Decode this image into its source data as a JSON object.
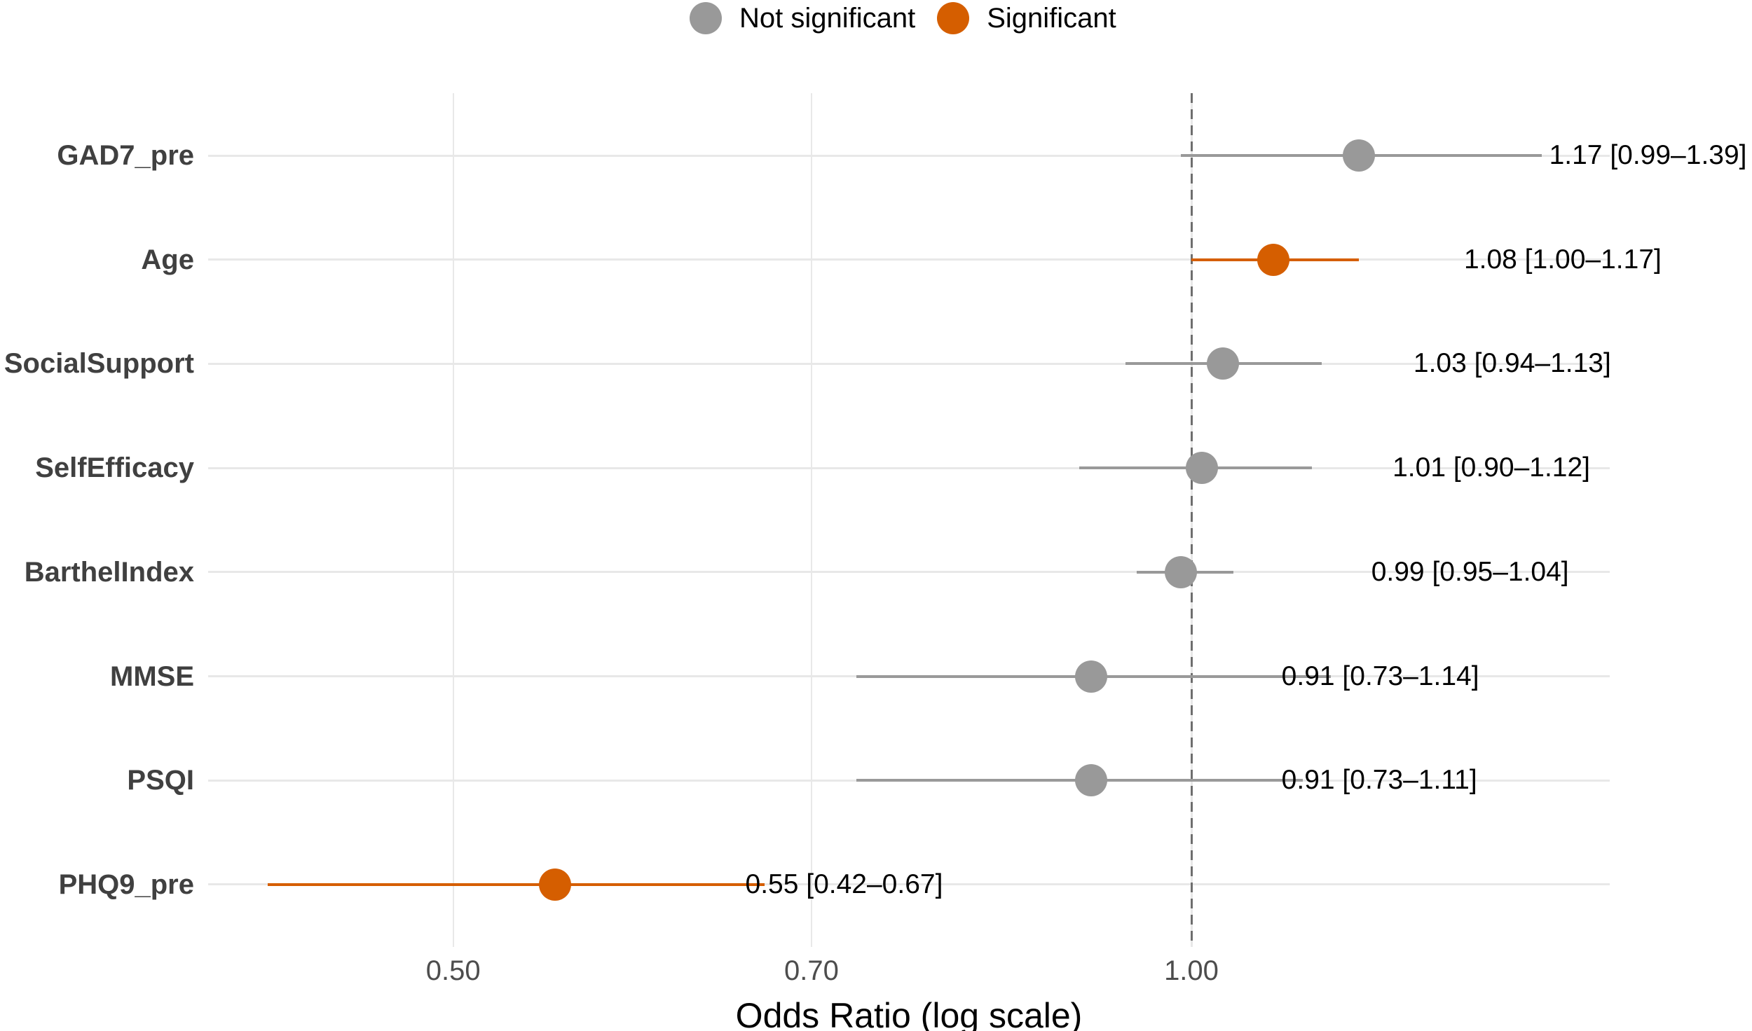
{
  "colors": {
    "not_significant": "#999999",
    "significant": "#D55E00",
    "grid": "#E8E8E8",
    "reference_line": "#6E6E6E",
    "y_axis_label": "#404040",
    "x_tick_label": "#4D4D4D",
    "data_label": "#000000",
    "background": "#FFFFFF"
  },
  "legend": {
    "items": [
      {
        "label": "Not significant",
        "color_key": "not_significant"
      },
      {
        "label": "Significant",
        "color_key": "significant"
      }
    ]
  },
  "chart_data": {
    "type": "scatter",
    "subtype": "forest-plot-odds-ratios",
    "title": "",
    "xlabel": "Odds Ratio (log scale)",
    "ylabel": "",
    "x_scale": "log",
    "xlim": [
      0.397,
      1.48
    ],
    "grid": true,
    "legend_position": "top",
    "x_ticks": [
      {
        "value": 0.5,
        "label": "0.50"
      },
      {
        "value": 0.7,
        "label": "0.70"
      },
      {
        "value": 1.0,
        "label": "1.00"
      }
    ],
    "reference_line_x": 1.0,
    "rows": [
      {
        "label": "GAD7_pre",
        "or": 1.17,
        "ci_low": 0.99,
        "ci_high": 1.39,
        "significant": false,
        "annotation": "1.17 [0.99–1.39]"
      },
      {
        "label": "Age",
        "or": 1.08,
        "ci_low": 1.0,
        "ci_high": 1.17,
        "significant": true,
        "annotation": "1.08 [1.00–1.17]"
      },
      {
        "label": "SocialSupport",
        "or": 1.03,
        "ci_low": 0.94,
        "ci_high": 1.13,
        "significant": false,
        "annotation": "1.03 [0.94–1.13]"
      },
      {
        "label": "SelfEfficacy",
        "or": 1.01,
        "ci_low": 0.9,
        "ci_high": 1.12,
        "significant": false,
        "annotation": "1.01 [0.90–1.12]"
      },
      {
        "label": "BarthelIndex",
        "or": 0.99,
        "ci_low": 0.95,
        "ci_high": 1.04,
        "significant": false,
        "annotation": "0.99 [0.95–1.04]"
      },
      {
        "label": "MMSE",
        "or": 0.91,
        "ci_low": 0.73,
        "ci_high": 1.14,
        "significant": false,
        "annotation": "0.91 [0.73–1.14]"
      },
      {
        "label": "PSQI",
        "or": 0.91,
        "ci_low": 0.73,
        "ci_high": 1.11,
        "significant": false,
        "annotation": "0.91 [0.73–1.11]"
      },
      {
        "label": "PHQ9_pre",
        "or": 0.55,
        "ci_low": 0.42,
        "ci_high": 0.67,
        "significant": true,
        "annotation": "0.55 [0.42–0.67]"
      }
    ]
  }
}
